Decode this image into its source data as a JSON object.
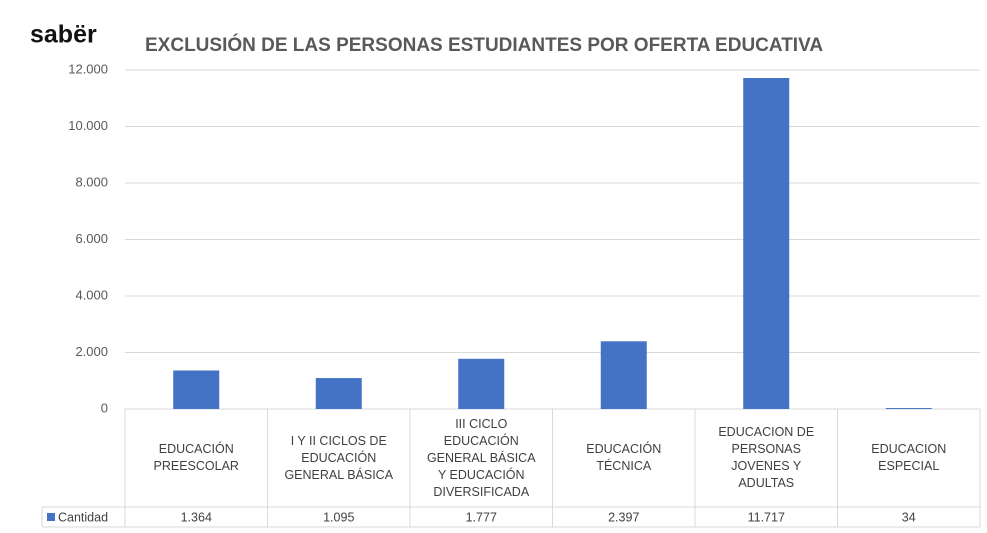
{
  "logo": "sabër",
  "chart_data": {
    "type": "bar",
    "title": "EXCLUSIÓN DE LAS PERSONAS ESTUDIANTES POR OFERTA EDUCATIVA",
    "categories": [
      "EDUCACIÓN PREESCOLAR",
      "I Y II CICLOS DE EDUCACIÓN GENERAL BÁSICA",
      "III CICLO EDUCACIÓN GENERAL BÁSICA Y EDUCACIÓN DIVERSIFICADA",
      "EDUCACIÓN TÉCNICA",
      "EDUCACION DE PERSONAS JOVENES Y ADULTAS",
      "EDUCACION ESPECIAL"
    ],
    "series": [
      {
        "name": "Cantidad",
        "color": "#4472c4",
        "values": [
          1364,
          1095,
          1777,
          2397,
          11717,
          34
        ],
        "value_labels": [
          "1.364",
          "1.095",
          "1.777",
          "2.397",
          "11.717",
          "34"
        ]
      }
    ],
    "ylim": [
      0,
      12000
    ],
    "yticks": [
      0,
      {
        "value": 2000,
        "label": "2.000"
      },
      {
        "value": 4000,
        "label": "4.000"
      },
      {
        "value": 6000,
        "label": "6.000"
      },
      {
        "value": 8000,
        "label": "8.000"
      },
      {
        "value": 10000,
        "label": "10.000"
      },
      {
        "value": 12000,
        "label": "12.000"
      }
    ],
    "grid": true
  }
}
